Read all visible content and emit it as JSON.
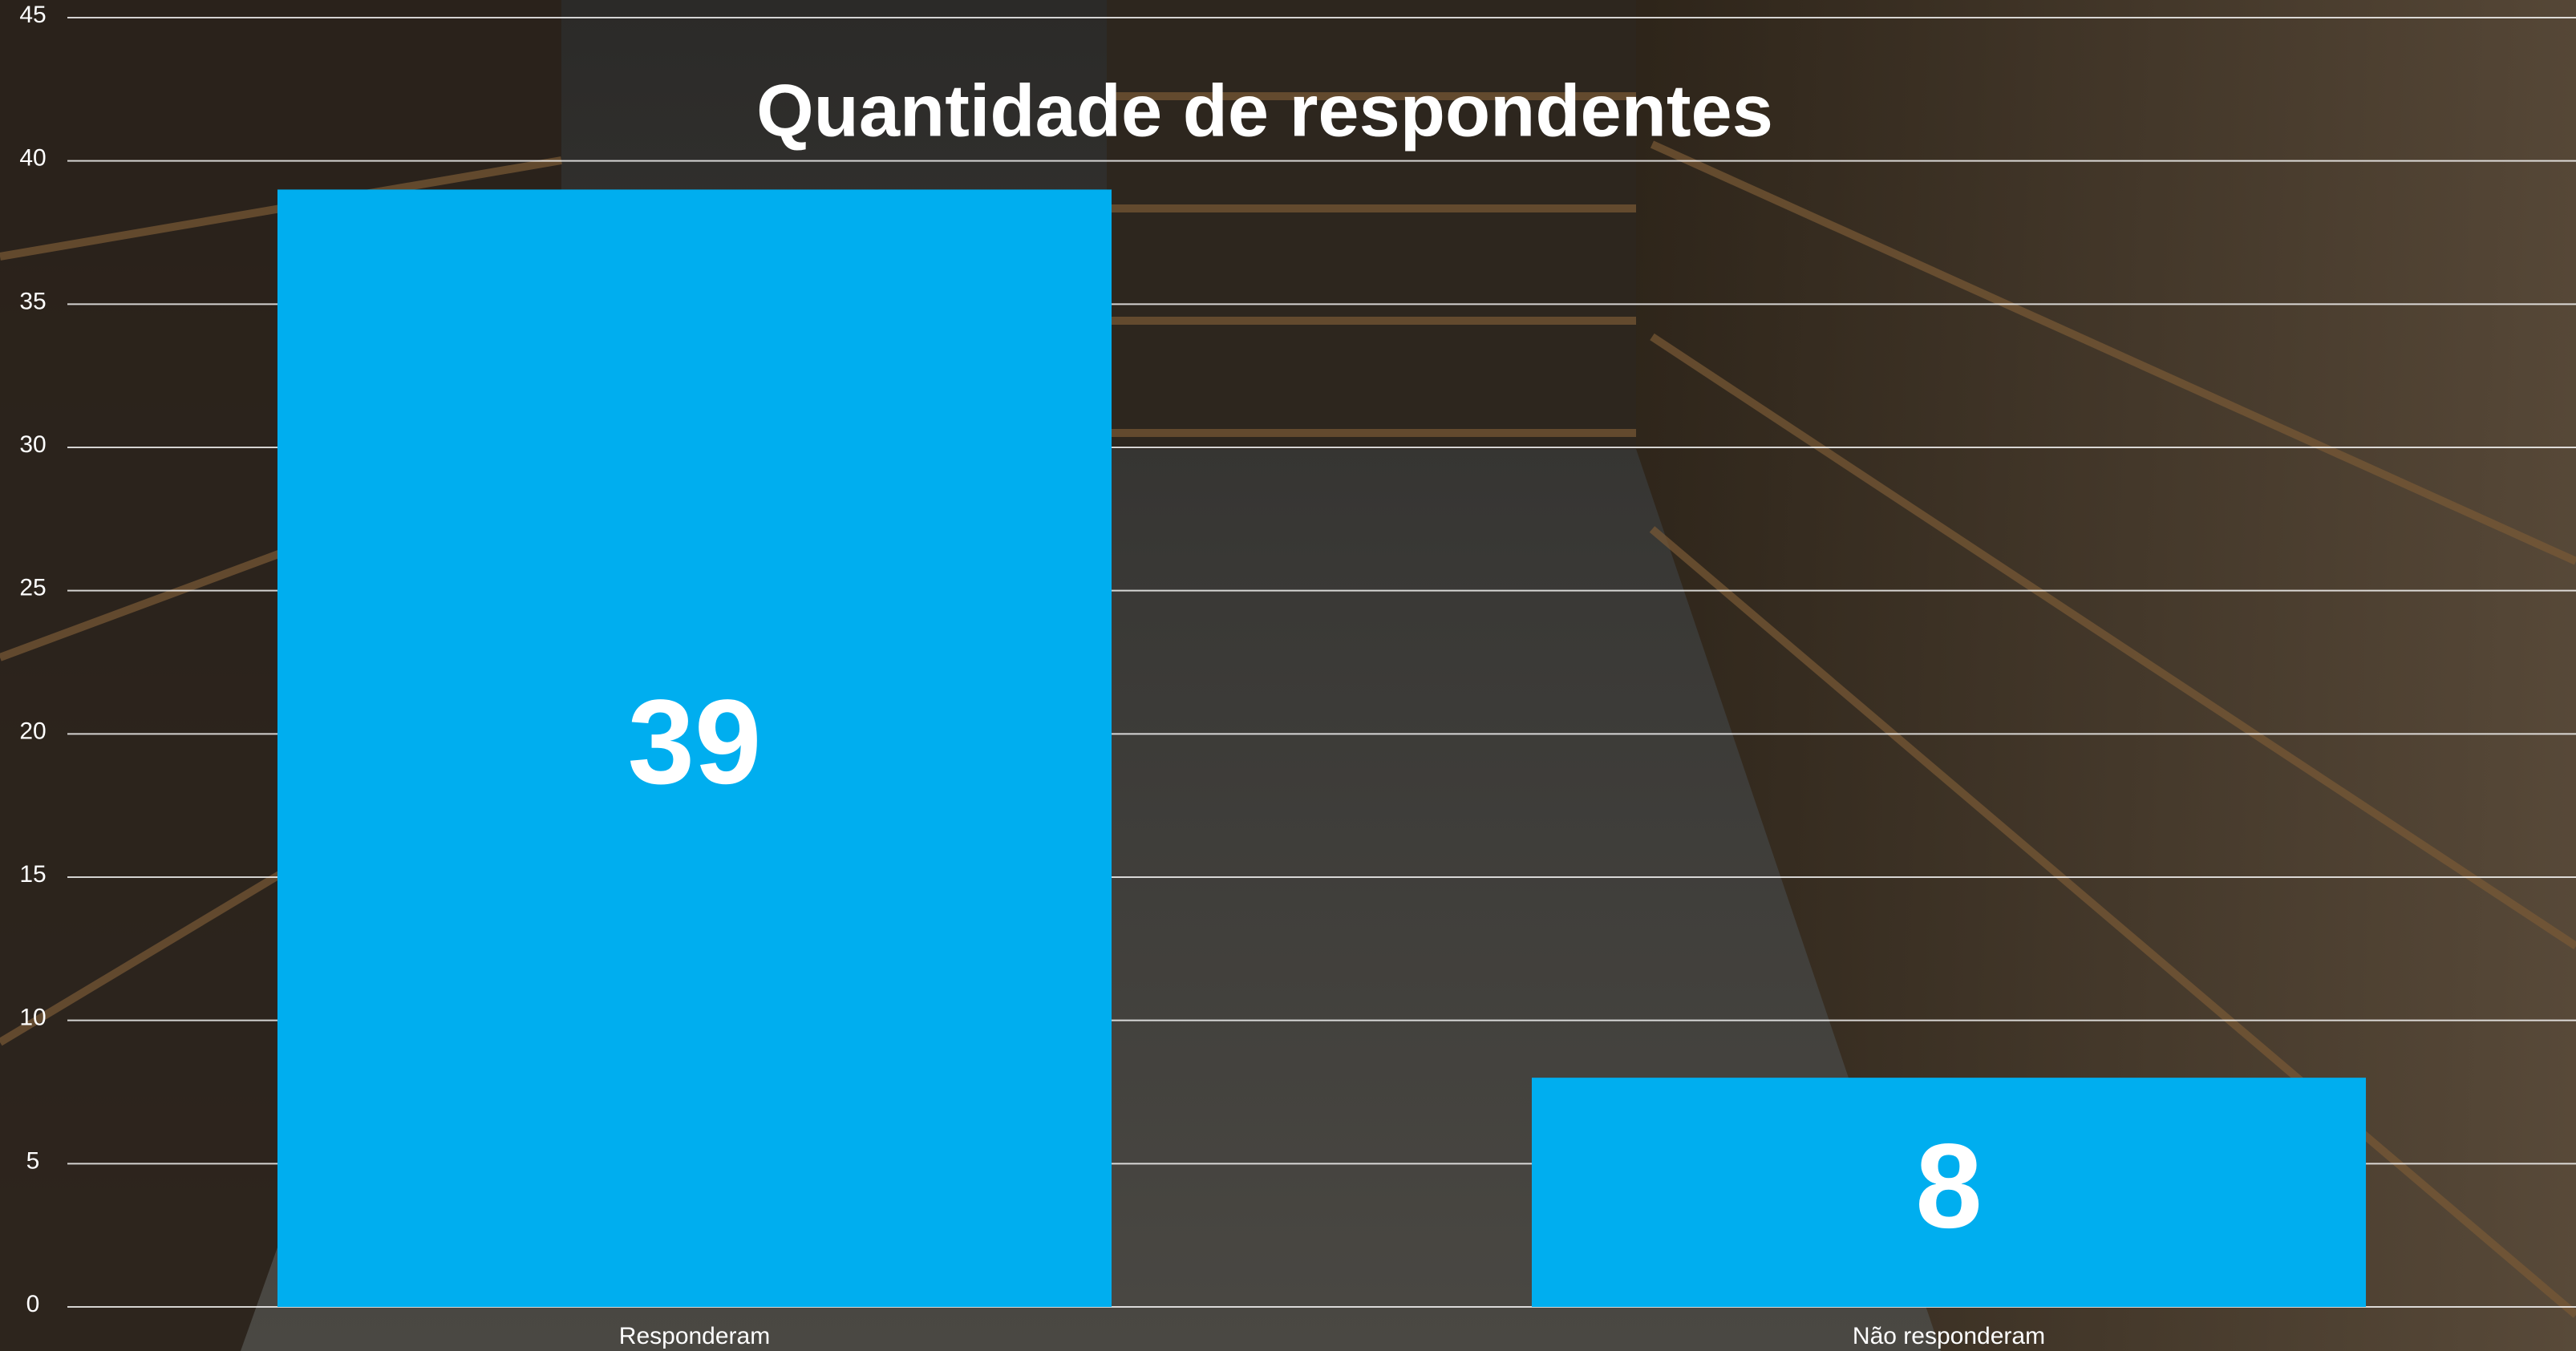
{
  "chart_data": {
    "type": "bar",
    "title": "Quantidade de respondentes",
    "categories": [
      "Responderam",
      "Não responderam"
    ],
    "values": [
      39,
      8
    ],
    "color": "#00aeef",
    "ylim": [
      0,
      45
    ],
    "yticks": [
      0,
      5,
      10,
      15,
      20,
      25,
      30,
      35,
      40,
      45
    ],
    "grid": true
  }
}
